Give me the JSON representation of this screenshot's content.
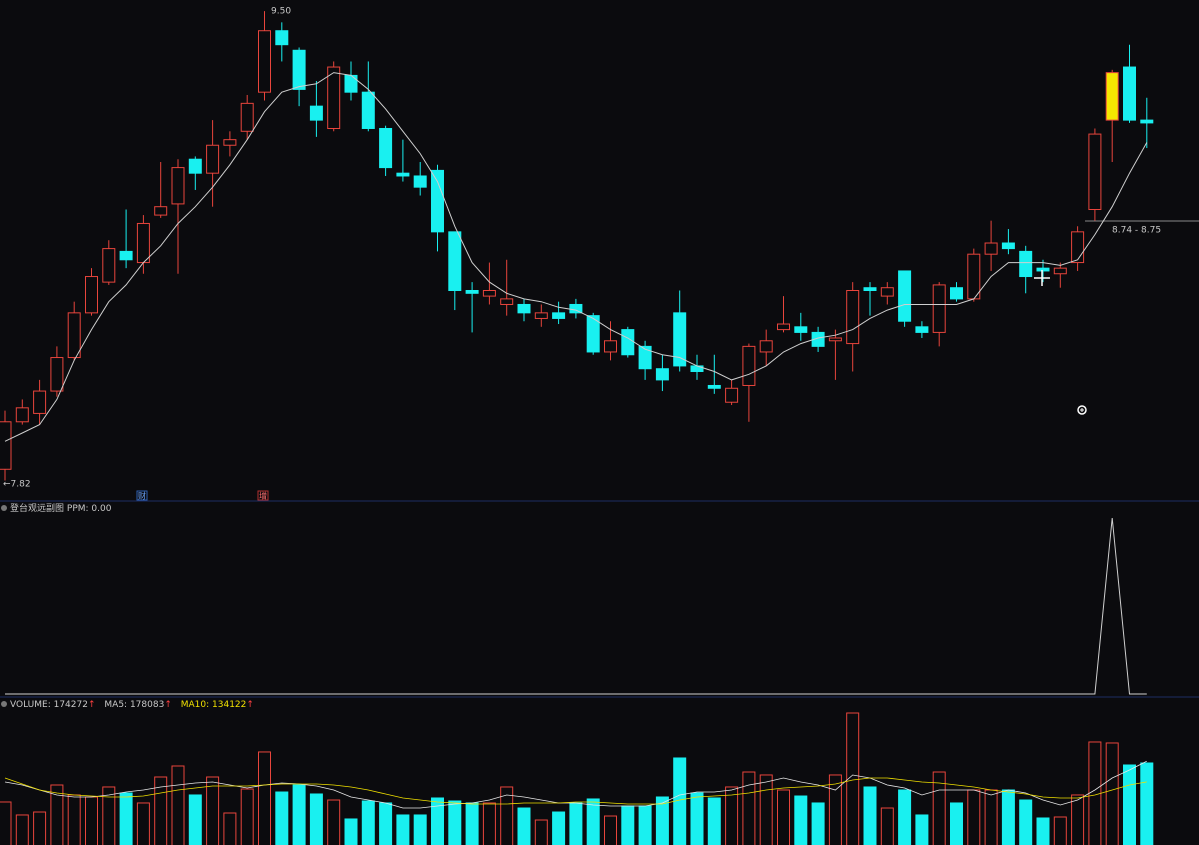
{
  "chart_data": [
    {
      "type": "candlestick",
      "ylim": [
        7.75,
        9.54
      ],
      "up_color": "#e8453c",
      "down_color": "#19f0f0",
      "highlight": {
        "index": 64,
        "color": "#f5e600"
      },
      "open": [
        7.86,
        8.03,
        8.06,
        8.14,
        8.26,
        8.42,
        8.53,
        8.64,
        8.6,
        8.77,
        8.81,
        8.97,
        8.92,
        9.02,
        9.07,
        9.21,
        9.43,
        9.36,
        9.16,
        9.08,
        9.27,
        9.21,
        9.08,
        8.92,
        8.91,
        8.93,
        8.71,
        8.5,
        8.48,
        8.45,
        8.45,
        8.4,
        8.42,
        8.45,
        8.41,
        8.28,
        8.36,
        8.3,
        8.22,
        8.42,
        8.23,
        8.16,
        8.1,
        8.16,
        8.28,
        8.36,
        8.37,
        8.35,
        8.32,
        8.31,
        8.51,
        8.48,
        8.57,
        8.37,
        8.35,
        8.51,
        8.47,
        8.63,
        8.67,
        8.64,
        8.58,
        8.56,
        8.6,
        8.79,
        9.11,
        9.3,
        9.11
      ],
      "high": [
        8.07,
        8.11,
        8.18,
        8.3,
        8.46,
        8.58,
        8.68,
        8.79,
        8.77,
        8.96,
        8.97,
        8.98,
        9.11,
        9.07,
        9.2,
        9.5,
        9.46,
        9.37,
        9.25,
        9.32,
        9.32,
        9.32,
        9.09,
        9.04,
        8.96,
        8.95,
        8.71,
        8.53,
        8.6,
        8.61,
        8.47,
        8.45,
        8.46,
        8.47,
        8.42,
        8.39,
        8.37,
        8.32,
        8.27,
        8.5,
        8.27,
        8.27,
        8.18,
        8.31,
        8.36,
        8.48,
        8.42,
        8.37,
        8.36,
        8.53,
        8.53,
        8.53,
        8.57,
        8.39,
        8.53,
        8.53,
        8.65,
        8.75,
        8.72,
        8.66,
        8.61,
        8.6,
        8.73,
        9.08,
        9.29,
        9.38,
        9.19
      ],
      "low": [
        7.82,
        8.02,
        8.02,
        8.12,
        8.25,
        8.41,
        8.52,
        8.58,
        8.56,
        8.76,
        8.56,
        8.86,
        8.8,
        8.98,
        9.04,
        9.18,
        9.32,
        9.16,
        9.05,
        9.07,
        9.18,
        9.07,
        8.91,
        8.89,
        8.84,
        8.64,
        8.43,
        8.35,
        8.45,
        8.41,
        8.39,
        8.37,
        8.38,
        8.4,
        8.27,
        8.25,
        8.26,
        8.18,
        8.14,
        8.21,
        8.18,
        8.13,
        8.09,
        8.03,
        8.23,
        8.35,
        8.32,
        8.28,
        8.18,
        8.21,
        8.41,
        8.45,
        8.37,
        8.33,
        8.3,
        8.46,
        8.46,
        8.57,
        8.63,
        8.49,
        8.53,
        8.51,
        8.57,
        8.75,
        8.96,
        9.1,
        9.01
      ],
      "close": [
        8.03,
        8.08,
        8.14,
        8.26,
        8.42,
        8.55,
        8.65,
        8.61,
        8.74,
        8.8,
        8.94,
        8.92,
        9.02,
        9.04,
        9.17,
        9.43,
        9.38,
        9.22,
        9.11,
        9.3,
        9.21,
        9.08,
        8.94,
        8.91,
        8.87,
        8.71,
        8.5,
        8.49,
        8.5,
        8.47,
        8.42,
        8.42,
        8.4,
        8.42,
        8.28,
        8.32,
        8.27,
        8.22,
        8.18,
        8.23,
        8.21,
        8.15,
        8.15,
        8.3,
        8.32,
        8.38,
        8.35,
        8.3,
        8.33,
        8.5,
        8.5,
        8.51,
        8.39,
        8.35,
        8.52,
        8.47,
        8.63,
        8.67,
        8.65,
        8.55,
        8.57,
        8.58,
        8.71,
        9.06,
        9.28,
        9.11,
        9.1
      ],
      "ma_line": {
        "color": "#cfcfcf",
        "values": [
          7.96,
          7.99,
          8.02,
          8.11,
          8.25,
          8.36,
          8.46,
          8.52,
          8.6,
          8.66,
          8.74,
          8.8,
          8.87,
          8.95,
          9.04,
          9.14,
          9.21,
          9.23,
          9.24,
          9.28,
          9.27,
          9.22,
          9.15,
          9.07,
          8.99,
          8.89,
          8.73,
          8.6,
          8.53,
          8.49,
          8.47,
          8.46,
          8.44,
          8.43,
          8.4,
          8.36,
          8.33,
          8.29,
          8.27,
          8.26,
          8.23,
          8.21,
          8.18,
          8.2,
          8.23,
          8.28,
          8.31,
          8.33,
          8.34,
          8.36,
          8.4,
          8.43,
          8.45,
          8.45,
          8.45,
          8.45,
          8.47,
          8.55,
          8.6,
          8.6,
          8.6,
          8.59,
          8.61,
          8.7,
          8.8,
          8.92,
          9.03
        ]
      },
      "high_label": "9.50",
      "low_label": "←7.82",
      "range_label": "8.74 - 8.75",
      "badges": [
        "财",
        "增"
      ]
    },
    {
      "type": "line",
      "title": "登台观远副图",
      "value_label": "PPM: 0.00",
      "ylim": [
        0,
        1
      ],
      "color": "#d0d0d0",
      "values": [
        0,
        0,
        0,
        0,
        0,
        0,
        0,
        0,
        0,
        0,
        0,
        0,
        0,
        0,
        0,
        0,
        0,
        0,
        0,
        0,
        0,
        0,
        0,
        0,
        0,
        0,
        0,
        0,
        0,
        0,
        0,
        0,
        0,
        0,
        0,
        0,
        0,
        0,
        0,
        0,
        0,
        0,
        0,
        0,
        0,
        0,
        0,
        0,
        0,
        0,
        0,
        0,
        0,
        0,
        0,
        0,
        0,
        0,
        0,
        0,
        0,
        0,
        0,
        0,
        1,
        0,
        0
      ]
    },
    {
      "type": "volume",
      "ylim": [
        0,
        280500
      ],
      "trend_marker": "↑",
      "series": [
        {
          "name": "VOLUME:",
          "color": "#e8e8e8",
          "values": [
            91400,
            63800,
            70100,
            127500,
            106300,
            102000,
            123300,
            110500,
            89300,
            144500,
            167900,
            106300,
            144500,
            68000,
            119000,
            197700,
            112600,
            127500,
            108400,
            95600,
            55300,
            93500,
            89300,
            63800,
            63800,
            99900,
            93500,
            89300,
            89300,
            123300,
            78600,
            53100,
            70100,
            89300,
            97800,
            61600,
            82900,
            82900,
            102000,
            184900,
            110500,
            99900,
            123300,
            155100,
            148800,
            116900,
            104100,
            89300,
            148800,
            280500,
            123300,
            78600,
            116900,
            63800,
            155100,
            89300,
            116900,
            116900,
            116900,
            95600,
            57400,
            59500,
            106300,
            218900,
            216800,
            170000,
            174272
          ]
        },
        {
          "name": "MA5:",
          "color": "#e8e8e8",
          "values": [
            133900,
            127500,
            116900,
            106300,
            102000,
            102000,
            106300,
            112600,
            116900,
            123300,
            127500,
            131800,
            133900,
            127500,
            121100,
            127500,
            131800,
            129600,
            125400,
            116900,
            102000,
            95600,
            89300,
            78600,
            78600,
            82900,
            87100,
            89300,
            95600,
            106300,
            102000,
            95600,
            89300,
            89300,
            85000,
            82900,
            82900,
            82900,
            89300,
            106300,
            112600,
            112600,
            116900,
            127500,
            133900,
            142400,
            133900,
            127500,
            116900,
            148800,
            142400,
            127500,
            121100,
            106300,
            116900,
            116900,
            116900,
            106300,
            116900,
            110500,
            95600,
            85000,
            95600,
            116900,
            142400,
            159400,
            178083
          ]
        },
        {
          "name": "MA10:",
          "color": "#f0e000",
          "values": [
            142400,
            129600,
            116900,
            110500,
            106300,
            104100,
            102000,
            102000,
            104100,
            110500,
            116900,
            121100,
            125400,
            125400,
            125400,
            127500,
            129600,
            129600,
            129600,
            127500,
            123300,
            116900,
            108400,
            99900,
            95600,
            91400,
            89300,
            87100,
            87100,
            87100,
            89300,
            89300,
            89300,
            91400,
            91400,
            89300,
            87100,
            87100,
            87100,
            95600,
            102000,
            104100,
            106300,
            110500,
            116900,
            121100,
            123300,
            125400,
            129600,
            138100,
            142400,
            142400,
            138100,
            133900,
            131800,
            127500,
            123300,
            116900,
            112600,
            108400,
            102000,
            99900,
            99900,
            106300,
            116900,
            127500,
            134122
          ]
        }
      ]
    }
  ]
}
